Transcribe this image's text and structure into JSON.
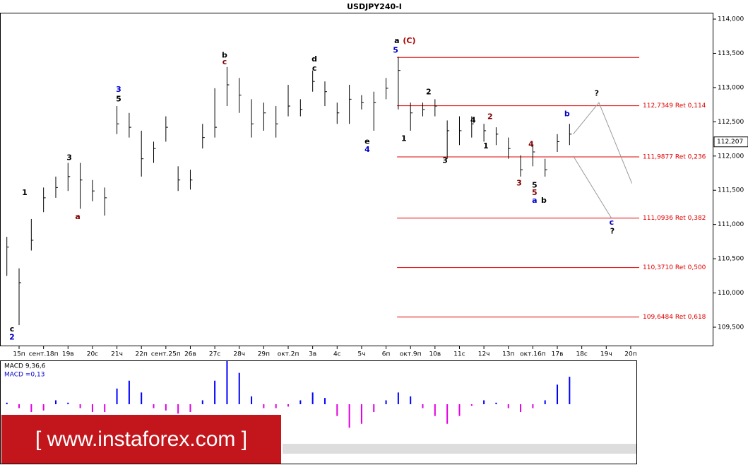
{
  "chart_data": {
    "type": "ohlc",
    "title": "USDJPY240-I",
    "x": [
      -0.5,
      0,
      0.5,
      1,
      1.5,
      2,
      2.5,
      3,
      3.5,
      4,
      4.5,
      5,
      5.5,
      6,
      6.5,
      7,
      7.5,
      8,
      8.5,
      9,
      9.5,
      10,
      10.5,
      11,
      11.5,
      12,
      12.5,
      13,
      13.5,
      14,
      14.5,
      15,
      15.5,
      16,
      16.5,
      17,
      17.5,
      18,
      18.5,
      19,
      19.5,
      20,
      20.5,
      21,
      21.5,
      22,
      22.5
    ],
    "high": [
      110.82,
      110.36,
      111.08,
      111.54,
      111.7,
      111.9,
      111.9,
      111.65,
      111.54,
      112.73,
      112.63,
      112.37,
      112.21,
      112.58,
      111.85,
      111.8,
      112.47,
      112.99,
      113.3,
      113.14,
      112.83,
      112.78,
      112.73,
      113.04,
      112.83,
      113.25,
      113.09,
      112.78,
      113.04,
      112.89,
      112.94,
      113.14,
      113.45,
      112.78,
      112.78,
      112.83,
      112.52,
      112.58,
      112.58,
      112.47,
      112.42,
      112.27,
      112.01,
      112.16,
      111.96,
      112.32,
      112.47
    ],
    "low": [
      110.25,
      109.53,
      110.62,
      111.18,
      111.39,
      111.49,
      111.23,
      111.34,
      111.13,
      112.32,
      112.27,
      111.7,
      111.9,
      112.21,
      111.49,
      111.51,
      112.11,
      112.27,
      112.73,
      112.63,
      112.27,
      112.37,
      112.27,
      112.58,
      112.58,
      112.94,
      112.73,
      112.47,
      112.47,
      112.68,
      112.37,
      112.83,
      112.68,
      112.37,
      112.58,
      112.58,
      111.96,
      112.16,
      112.27,
      112.21,
      112.16,
      111.96,
      111.7,
      111.85,
      111.7,
      112.06,
      112.16
    ],
    "close": [
      110.67,
      110.15,
      110.77,
      111.39,
      111.54,
      111.7,
      111.65,
      111.49,
      111.39,
      112.47,
      112.42,
      111.96,
      112.11,
      112.42,
      111.65,
      111.65,
      112.27,
      112.42,
      113.04,
      112.89,
      112.47,
      112.63,
      112.47,
      112.73,
      112.68,
      113.09,
      112.94,
      112.63,
      112.83,
      112.78,
      112.78,
      112.99,
      113.25,
      112.63,
      112.68,
      112.73,
      112.37,
      112.37,
      112.47,
      112.37,
      112.32,
      112.11,
      111.8,
      112.06,
      111.8,
      112.21,
      112.32
    ],
    "color": "#000000",
    "xlim": [
      -0.78,
      28.38
    ],
    "ylim": [
      109.242,
      114.279
    ],
    "xticks": [
      {
        "value": 0,
        "label": "15п"
      },
      {
        "value": 1,
        "label": "сент.18п"
      },
      {
        "value": 2,
        "label": "19в"
      },
      {
        "value": 3,
        "label": "20с"
      },
      {
        "value": 4,
        "label": "21ч"
      },
      {
        "value": 5,
        "label": "22п"
      },
      {
        "value": 6,
        "label": "сент.25п"
      },
      {
        "value": 7,
        "label": "26в"
      },
      {
        "value": 8,
        "label": "27с"
      },
      {
        "value": 9,
        "label": "28ч"
      },
      {
        "value": 10,
        "label": "29п"
      },
      {
        "value": 11,
        "label": "окт.2п"
      },
      {
        "value": 12,
        "label": "3в"
      },
      {
        "value": 13,
        "label": "4с"
      },
      {
        "value": 14,
        "label": "5ч"
      },
      {
        "value": 15,
        "label": "6п"
      },
      {
        "value": 16,
        "label": "окт.9п"
      },
      {
        "value": 17,
        "label": "10в"
      },
      {
        "value": 18,
        "label": "11с"
      },
      {
        "value": 19,
        "label": "12ч"
      },
      {
        "value": 20,
        "label": "13п"
      },
      {
        "value": 21,
        "label": "окт.16п"
      },
      {
        "value": 22,
        "label": "17в"
      },
      {
        "value": 23,
        "label": "18с"
      },
      {
        "value": 24,
        "label": "19ч"
      },
      {
        "value": 25,
        "label": "20п"
      }
    ],
    "yticks": [
      {
        "value": 109.5,
        "label": "109,500"
      },
      {
        "value": 110,
        "label": "110,000"
      },
      {
        "value": 110.5,
        "label": "110,500"
      },
      {
        "value": 111,
        "label": "111,000"
      },
      {
        "value": 111.5,
        "label": "111,500"
      },
      {
        "value": 112,
        "label": "112,000"
      },
      {
        "value": 112.5,
        "label": "112,500"
      },
      {
        "value": 113,
        "label": "113,000"
      },
      {
        "value": 113.5,
        "label": "113,500"
      },
      {
        "value": 114,
        "label": "114,000"
      }
    ],
    "last_price": {
      "value": 112.207,
      "label": "112,207"
    },
    "fib_base": 113.44,
    "fib_color": "#e00000",
    "fib_start": 15.45,
    "fib_end": 25.35,
    "fib_levels": [
      {
        "value": 112.7349,
        "label": "112,7349 Ret 0,114"
      },
      {
        "value": 111.9877,
        "label": "111,9877 Ret 0,236"
      },
      {
        "value": 111.0936,
        "label": "111,0936 Ret 0,382"
      },
      {
        "value": 110.371,
        "label": "110,3710 Ret 0,500"
      },
      {
        "value": 109.6484,
        "label": "109,6484 Ret 0,618"
      }
    ],
    "projections": [
      {
        "x": [
          22.65,
          23.7,
          25.05
        ],
        "y": [
          112.32,
          112.78,
          111.6
        ]
      },
      {
        "x": [
          22.65,
          24.2
        ],
        "y": [
          112.0,
          111.1
        ]
      }
    ],
    "annotations": [
      {
        "text": "a",
        "x": 15.44,
        "y": 113.68,
        "color": "#000000"
      },
      {
        "text": "(C)",
        "x": 15.95,
        "y": 113.68,
        "color": "#b00000"
      },
      {
        "text": "5",
        "x": 15.39,
        "y": 113.54,
        "color": "#0000cc"
      },
      {
        "text": "?",
        "x": 23.61,
        "y": 112.91,
        "color": "#000000"
      },
      {
        "text": "c",
        "x": 24.22,
        "y": 111.03,
        "color": "#0000cc"
      },
      {
        "text": "?",
        "x": 24.25,
        "y": 110.9,
        "color": "#000000"
      },
      {
        "text": "b",
        "x": 22.4,
        "y": 112.61,
        "color": "#0000cc"
      },
      {
        "text": "a",
        "x": 21.07,
        "y": 111.35,
        "color": "#0000cc"
      },
      {
        "text": "b",
        "x": 21.45,
        "y": 111.35,
        "color": "#000000"
      },
      {
        "text": "5",
        "x": 21.07,
        "y": 111.57,
        "color": "#000000"
      },
      {
        "text": "5",
        "x": 21.07,
        "y": 111.46,
        "color": "#800000"
      },
      {
        "text": "3",
        "x": 4.07,
        "y": 112.97,
        "color": "#0000cc"
      },
      {
        "text": "5",
        "x": 4.07,
        "y": 112.83,
        "color": "#000000"
      },
      {
        "text": "e",
        "x": 14.23,
        "y": 112.21,
        "color": "#000000"
      },
      {
        "text": "4",
        "x": 14.23,
        "y": 112.09,
        "color": "#0000cc"
      },
      {
        "text": "1",
        "x": 0.23,
        "y": 111.46,
        "color": "#000000"
      },
      {
        "text": "c",
        "x": -0.29,
        "y": 109.47,
        "color": "#000000"
      },
      {
        "text": "2",
        "x": -0.29,
        "y": 109.35,
        "color": "#0000cc"
      },
      {
        "text": "3",
        "x": 2.05,
        "y": 111.97,
        "color": "#000000"
      },
      {
        "text": "a",
        "x": 2.4,
        "y": 111.11,
        "color": "#800000"
      },
      {
        "text": "b",
        "x": 8.4,
        "y": 113.47,
        "color": "#000000"
      },
      {
        "text": "c",
        "x": 8.4,
        "y": 113.37,
        "color": "#800000"
      },
      {
        "text": "d",
        "x": 12.07,
        "y": 113.41,
        "color": "#000000"
      },
      {
        "text": "c",
        "x": 12.07,
        "y": 113.28,
        "color": "#000000"
      },
      {
        "text": "4",
        "x": 18.56,
        "y": 112.52,
        "color": "#000000"
      },
      {
        "text": "2",
        "x": 16.74,
        "y": 112.93,
        "color": "#000000"
      },
      {
        "text": "1",
        "x": 15.73,
        "y": 112.25,
        "color": "#000000"
      },
      {
        "text": "3",
        "x": 17.41,
        "y": 111.93,
        "color": "#000000"
      },
      {
        "text": "3",
        "x": 20.44,
        "y": 111.6,
        "color": "#800000"
      },
      {
        "text": "4",
        "x": 20.93,
        "y": 112.17,
        "color": "#800000"
      },
      {
        "text": "1",
        "x": 19.08,
        "y": 112.14,
        "color": "#000000"
      },
      {
        "text": "2",
        "x": 19.25,
        "y": 112.57,
        "color": "#800000"
      }
    ],
    "macd": {
      "labels": [
        "MACD 9,36,6",
        "MACD =0,13"
      ],
      "values": [
        0.02,
        -0.05,
        -0.1,
        -0.08,
        0.05,
        0.02,
        -0.05,
        -0.1,
        -0.1,
        0.2,
        0.3,
        0.15,
        -0.05,
        -0.08,
        -0.12,
        -0.1,
        0.05,
        0.3,
        0.55,
        0.4,
        0.1,
        -0.05,
        -0.05,
        -0.03,
        0.05,
        0.15,
        0.08,
        -0.15,
        -0.3,
        -0.25,
        -0.1,
        0.05,
        0.15,
        0.1,
        -0.05,
        -0.15,
        -0.25,
        -0.15,
        -0.02,
        0.05,
        0.02,
        -0.05,
        -0.1,
        -0.05,
        0.05,
        0.25,
        0.35
      ],
      "ylim": [
        -0.55,
        0.55
      ],
      "pos_color": "#0000ff",
      "neg_color": "#e000e0"
    },
    "watermark": "[ www.instaforex.com ]"
  }
}
